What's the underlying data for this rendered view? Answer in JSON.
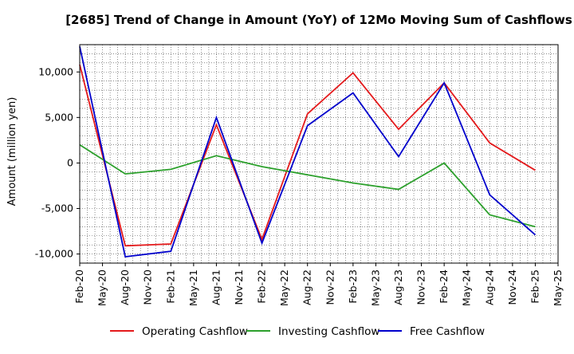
{
  "chart_data": {
    "type": "line",
    "title": "[2685]  Trend of Change in Amount (YoY) of 12Mo Moving Sum of Cashflows",
    "xlabel": "",
    "ylabel": "Amount (million yen)",
    "ylim": [
      -11000,
      13000
    ],
    "yticks": [
      10000,
      5000,
      0,
      -5000,
      -10000
    ],
    "ytick_labels": [
      "10,000",
      "5,000",
      "0",
      "-5,000",
      "-10,000"
    ],
    "xtick_labels": [
      "Feb-20",
      "May-20",
      "Aug-20",
      "Nov-20",
      "Feb-21",
      "May-21",
      "Aug-21",
      "Nov-21",
      "Feb-22",
      "May-22",
      "Aug-22",
      "Nov-22",
      "Feb-23",
      "May-23",
      "Aug-23",
      "Nov-23",
      "Feb-24",
      "May-24",
      "Aug-24",
      "Nov-24",
      "Feb-25",
      "May-25"
    ],
    "grid": true,
    "legend_position": "bottom",
    "x": [
      "Feb-20",
      "Aug-20",
      "Feb-21",
      "Aug-21",
      "Feb-22",
      "Aug-22",
      "Feb-23",
      "Aug-23",
      "Feb-24",
      "Aug-24",
      "Feb-25"
    ],
    "series": [
      {
        "name": "Operating Cashflow",
        "color": "#e41a1c",
        "values": [
          10800,
          -9100,
          -8900,
          4200,
          -8400,
          5400,
          9900,
          3700,
          8800,
          2200,
          -800
        ]
      },
      {
        "name": "Investing Cashflow",
        "color": "#2ca02c",
        "values": [
          2000,
          -1200,
          -700,
          800,
          -400,
          -1300,
          -2200,
          -2900,
          0,
          -5700,
          -7000
        ]
      },
      {
        "name": "Free Cashflow",
        "color": "#0000cc",
        "values": [
          12800,
          -10300,
          -9700,
          5000,
          -8800,
          4100,
          7700,
          700,
          8800,
          -3500,
          -7900
        ]
      }
    ]
  }
}
